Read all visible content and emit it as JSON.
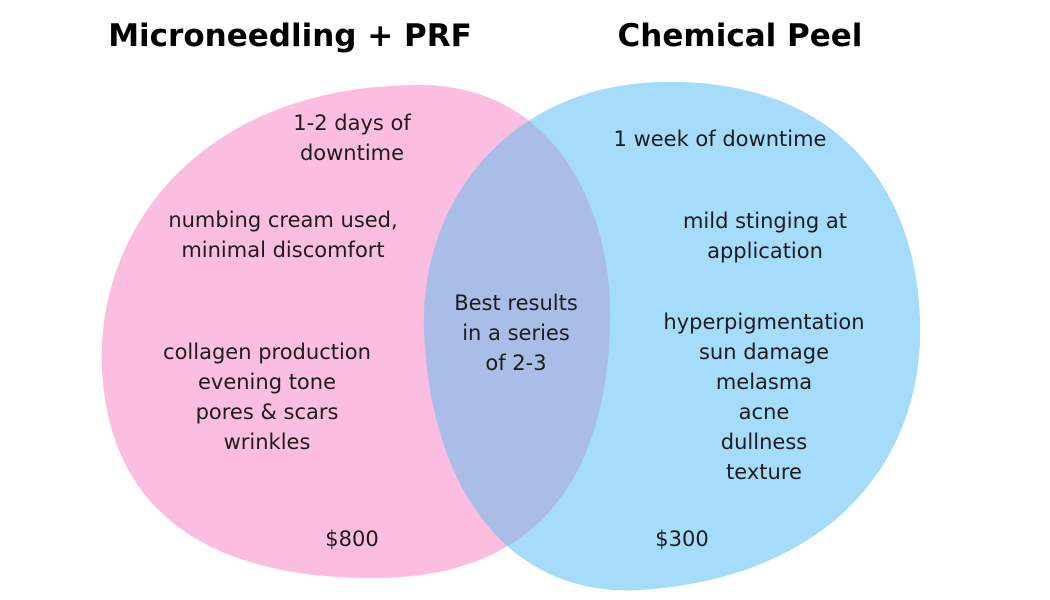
{
  "titles": {
    "left": "Microneedling + PRF",
    "right": "Chemical Peel"
  },
  "colors": {
    "left_circle": "#fbbde0",
    "right_circle": "#a5dbfb",
    "overlap": "#a9bde6"
  },
  "left": {
    "downtime": [
      "1-2 days of",
      "downtime"
    ],
    "comfort": [
      "numbing cream used,",
      "minimal discomfort"
    ],
    "benefits": [
      "collagen production",
      "evening tone",
      "pores & scars",
      "wrinkles"
    ],
    "price": "$800"
  },
  "overlap": {
    "note": [
      "Best results",
      "in a series",
      "of 2-3"
    ]
  },
  "right": {
    "downtime": "1 week of downtime",
    "comfort": [
      "mild stinging at",
      "application"
    ],
    "benefits": [
      "hyperpigmentation",
      "sun damage",
      "melasma",
      "acne",
      "dullness",
      "texture"
    ],
    "price": "$300"
  }
}
